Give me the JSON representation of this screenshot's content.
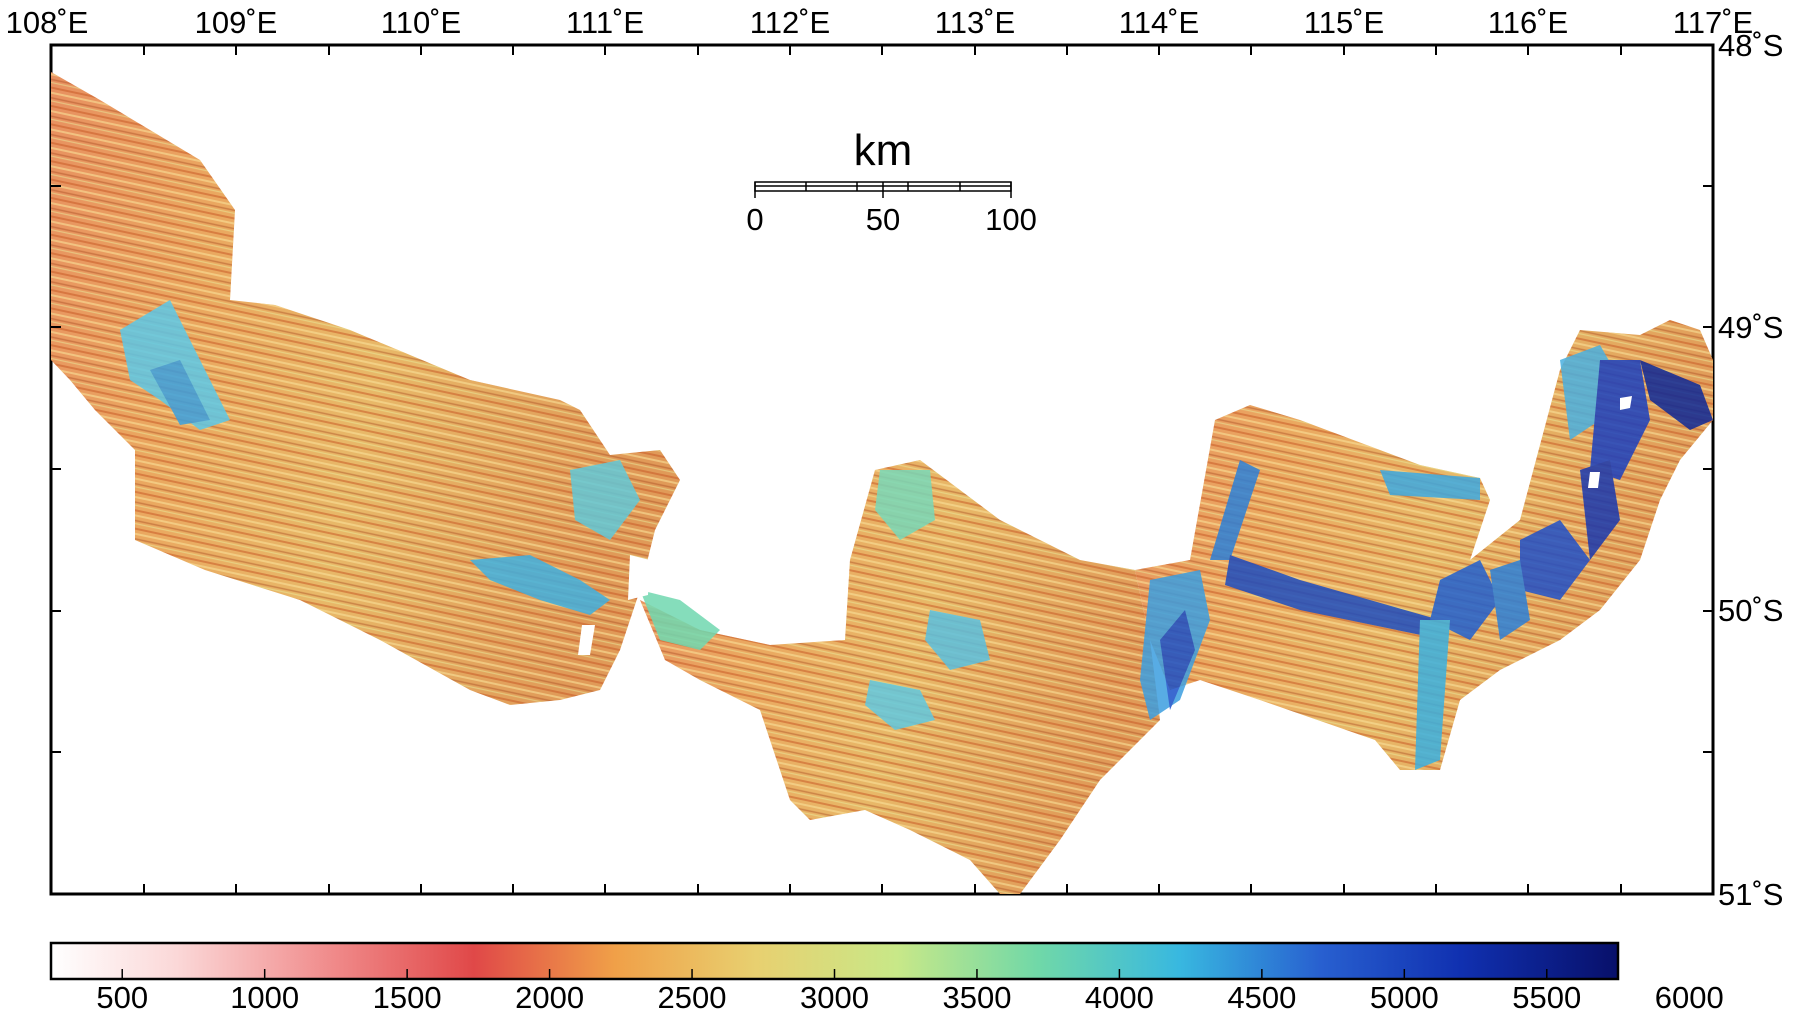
{
  "map": {
    "longitude_labels": [
      "108˚E",
      "109˚E",
      "110˚E",
      "111˚E",
      "112˚E",
      "113˚E",
      "114˚E",
      "115˚E",
      "116˚E",
      "117˚E"
    ],
    "latitude_labels": [
      "48˚S",
      "49˚S",
      "50˚S",
      "51˚S"
    ],
    "lon_range": [
      108,
      117
    ],
    "lat_range": [
      -51,
      -48
    ],
    "scale_bar": {
      "unit_label": "km",
      "tick_labels": [
        "0",
        "50",
        "100"
      ],
      "max_km": 100
    },
    "colorbar": {
      "tick_labels": [
        "500",
        "1000",
        "1500",
        "2000",
        "2500",
        "3000",
        "3500",
        "4000",
        "4500",
        "5000",
        "5500",
        "6000"
      ],
      "range": [
        250,
        5750
      ],
      "colors": [
        "#ffffff",
        "#f7b8b8",
        "#ee6e6e",
        "#e04848",
        "#f0a048",
        "#e8d878",
        "#c8e888",
        "#70d8a8",
        "#3ac0e0",
        "#2860d0",
        "#1030b0",
        "#08106a"
      ]
    }
  }
}
